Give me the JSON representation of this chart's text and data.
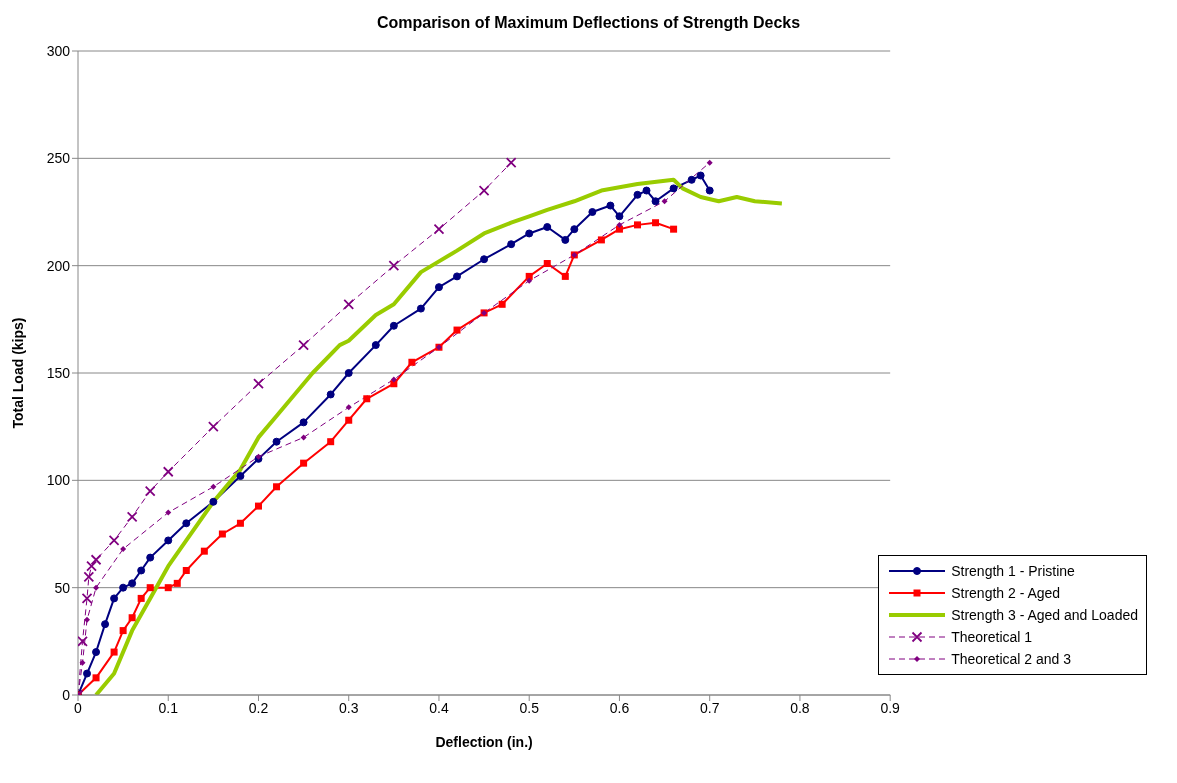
{
  "chart_data": {
    "type": "line",
    "title": "Comparison of Maximum Deflections of Strength Decks",
    "xlabel": "Deflection (in.)",
    "ylabel": "Total Load (kips)",
    "xlim": [
      0,
      0.9
    ],
    "xticks": [
      0,
      0.1,
      0.2,
      0.3,
      0.4,
      0.5,
      0.6,
      0.7,
      0.8,
      0.9
    ],
    "ylim": [
      0,
      300
    ],
    "yticks": [
      0,
      50,
      100,
      150,
      200,
      250,
      300
    ],
    "grid": "y",
    "legend": "bottom right",
    "series": [
      {
        "name": "Strength 1 - Pristine",
        "color": "#000080",
        "marker": "circle",
        "line_style": "solid",
        "x": [
          0,
          0.01,
          0.02,
          0.03,
          0.04,
          0.05,
          0.06,
          0.07,
          0.08,
          0.1,
          0.12,
          0.15,
          0.18,
          0.2,
          0.22,
          0.25,
          0.28,
          0.3,
          0.33,
          0.35,
          0.38,
          0.4,
          0.42,
          0.45,
          0.48,
          0.5,
          0.52,
          0.54,
          0.55,
          0.57,
          0.59,
          0.6,
          0.62,
          0.63,
          0.64,
          0.66,
          0.68,
          0.69,
          0.7
        ],
        "values": [
          0,
          10,
          20,
          33,
          45,
          50,
          52,
          58,
          64,
          72,
          80,
          90,
          102,
          110,
          118,
          127,
          140,
          150,
          163,
          172,
          180,
          190,
          195,
          203,
          210,
          215,
          218,
          212,
          217,
          225,
          228,
          223,
          233,
          235,
          230,
          236,
          240,
          242,
          235
        ]
      },
      {
        "name": "Strength 2 - Aged",
        "color": "#ff0000",
        "marker": "square",
        "line_style": "solid",
        "x": [
          0,
          0.02,
          0.04,
          0.05,
          0.06,
          0.07,
          0.08,
          0.1,
          0.11,
          0.12,
          0.14,
          0.16,
          0.18,
          0.2,
          0.22,
          0.25,
          0.28,
          0.3,
          0.32,
          0.35,
          0.37,
          0.4,
          0.42,
          0.45,
          0.47,
          0.5,
          0.52,
          0.54,
          0.55,
          0.58,
          0.6,
          0.62,
          0.64,
          0.66
        ],
        "values": [
          0,
          8,
          20,
          30,
          36,
          45,
          50,
          50,
          52,
          58,
          67,
          75,
          80,
          88,
          97,
          108,
          118,
          128,
          138,
          145,
          155,
          162,
          170,
          178,
          182,
          195,
          201,
          195,
          205,
          212,
          217,
          219,
          220,
          217
        ]
      },
      {
        "name": "Strength 3 - Aged and Loaded",
        "color": "#99cc00",
        "marker": "none",
        "line_style": "solid",
        "x": [
          0.02,
          0.04,
          0.06,
          0.08,
          0.1,
          0.12,
          0.15,
          0.18,
          0.2,
          0.22,
          0.24,
          0.26,
          0.29,
          0.3,
          0.33,
          0.35,
          0.38,
          0.4,
          0.42,
          0.45,
          0.48,
          0.5,
          0.52,
          0.55,
          0.58,
          0.62,
          0.66,
          0.67,
          0.69,
          0.71,
          0.73,
          0.75,
          0.78
        ],
        "values": [
          0,
          10,
          30,
          45,
          60,
          72,
          90,
          105,
          120,
          130,
          140,
          150,
          163,
          165,
          177,
          182,
          197,
          202,
          207,
          215,
          220,
          223,
          226,
          230,
          235,
          238,
          240,
          236,
          232,
          230,
          232,
          230,
          229
        ]
      },
      {
        "name": "Theoretical 1",
        "color": "#800080",
        "marker": "cross",
        "line_style": "dashed",
        "x": [
          0,
          0.005,
          0.01,
          0.012,
          0.015,
          0.02,
          0.04,
          0.06,
          0.08,
          0.1,
          0.15,
          0.2,
          0.25,
          0.3,
          0.35,
          0.4,
          0.45,
          0.48
        ],
        "values": [
          0,
          25,
          45,
          55,
          60,
          63,
          72,
          83,
          95,
          104,
          125,
          145,
          163,
          182,
          200,
          217,
          235,
          248
        ]
      },
      {
        "name": "Theoretical 2 and 3",
        "color": "#800080",
        "marker": "diamond",
        "line_style": "dashed",
        "x": [
          0,
          0.005,
          0.01,
          0.02,
          0.05,
          0.1,
          0.15,
          0.2,
          0.25,
          0.3,
          0.35,
          0.4,
          0.45,
          0.5,
          0.55,
          0.6,
          0.65,
          0.7
        ],
        "values": [
          0,
          15,
          35,
          50,
          68,
          85,
          97,
          111,
          120,
          134,
          147,
          162,
          178,
          193,
          205,
          219,
          230,
          248
        ]
      }
    ]
  }
}
